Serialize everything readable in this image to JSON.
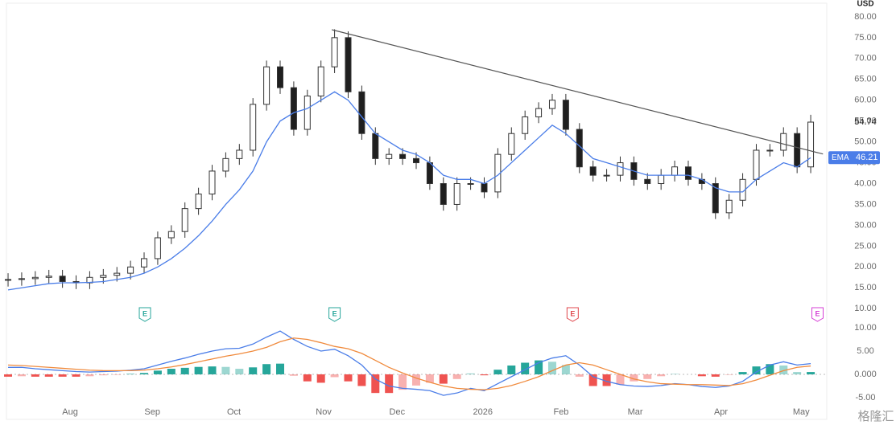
{
  "chart_data": [
    {
      "type": "candlestick",
      "currency": "USD",
      "xlim": [
        -0.12,
        60.18
      ],
      "ylim": [
        8.5,
        82.1
      ],
      "yticks": [
        {
          "value": 80,
          "label": "80.00"
        },
        {
          "value": 75,
          "label": "75.00"
        },
        {
          "value": 70,
          "label": "70.00"
        },
        {
          "value": 65,
          "label": "65.00"
        },
        {
          "value": 60,
          "label": "60.00"
        },
        {
          "value": 55,
          "label": "55.00"
        },
        {
          "value": 50,
          "label": "50.00"
        },
        {
          "value": 45,
          "label": "45.00"
        },
        {
          "value": 40,
          "label": "40.00"
        },
        {
          "value": 35,
          "label": "35.00"
        },
        {
          "value": 30,
          "label": "30.00"
        },
        {
          "value": 25,
          "label": "25.00"
        },
        {
          "value": 20,
          "label": "20.00"
        },
        {
          "value": 15,
          "label": "15.00"
        },
        {
          "value": 10,
          "label": "10.00"
        }
      ],
      "open": [
        16.8,
        17,
        17.2,
        17.5,
        17.8,
        16.5,
        16.2,
        17.5,
        18,
        18.5,
        20,
        22,
        27,
        28.5,
        34,
        37.5,
        43,
        46,
        48,
        59,
        68,
        63,
        53,
        61,
        68,
        75,
        62,
        52,
        46,
        47,
        46,
        45,
        40,
        35,
        40,
        40,
        38,
        47,
        52,
        56,
        58,
        60,
        53,
        44,
        42,
        42,
        45,
        41,
        40,
        42,
        44,
        41,
        40,
        33,
        36,
        41,
        48,
        48,
        52,
        44
      ],
      "high": [
        18.5,
        18.7,
        19,
        19.3,
        19.3,
        18,
        19,
        19.5,
        20,
        21.5,
        23.5,
        28.5,
        30,
        35.5,
        39,
        44.5,
        47.5,
        49.5,
        60.5,
        69.5,
        69.5,
        64.5,
        62.5,
        69.5,
        77,
        76.5,
        63.5,
        53.5,
        48.5,
        48.5,
        47.5,
        46.5,
        41.5,
        41.5,
        41.5,
        41.5,
        48.5,
        53.5,
        57.5,
        59.5,
        61.5,
        61.5,
        54.5,
        45.5,
        43.5,
        46.5,
        46.5,
        42.5,
        43.5,
        45.5,
        45.5,
        42.5,
        41.5,
        37.5,
        42.5,
        49.5,
        49.5,
        53.5,
        53.5,
        56.5
      ],
      "low": [
        15.3,
        15.5,
        15.7,
        16,
        15,
        14.7,
        14.7,
        16,
        16.5,
        17,
        18.5,
        20.5,
        25.5,
        27,
        32.5,
        36,
        41.5,
        44.5,
        46.5,
        57.5,
        61.5,
        51.5,
        51.5,
        59.5,
        66.5,
        60.5,
        50.5,
        44.5,
        44.5,
        44.5,
        43.5,
        38.5,
        33.5,
        33.5,
        38.5,
        36.5,
        36.5,
        45.5,
        50.5,
        54.5,
        56.5,
        51.5,
        42.5,
        40.5,
        40.5,
        40.5,
        39.5,
        38.5,
        38.5,
        40.5,
        39.5,
        38.5,
        31.5,
        31.5,
        34.5,
        39.5,
        46.5,
        46.5,
        42.5,
        42.5
      ],
      "close": [
        17,
        17.2,
        17.5,
        17.8,
        16.5,
        16.2,
        17.5,
        18,
        18.5,
        20,
        22,
        27,
        28.5,
        34,
        37.5,
        43,
        46,
        48,
        59,
        68,
        63,
        53,
        61,
        68,
        75,
        62,
        52,
        46,
        47,
        46,
        45,
        40,
        35,
        40,
        40,
        38,
        47,
        52,
        56,
        58,
        60,
        53,
        44,
        42,
        42,
        45,
        41,
        40,
        42,
        44,
        41,
        40,
        33,
        36,
        41,
        48,
        48,
        52,
        44,
        54.74
      ],
      "up_color": "#ffffff",
      "down_color": "#1f1f1f",
      "outline_color": "#333333",
      "series": [
        {
          "name": "EMA",
          "color": "#4a7de8",
          "values": [
            14.5,
            15,
            15.5,
            16,
            16.2,
            16.2,
            16.3,
            16.5,
            17,
            17.5,
            18.5,
            20,
            22,
            24.5,
            27.5,
            31,
            35,
            38.5,
            43,
            50,
            55,
            57,
            58,
            60,
            62,
            60,
            56,
            52,
            50,
            48,
            47,
            45,
            42,
            41,
            41,
            40,
            42,
            45,
            48,
            51,
            54,
            52,
            49,
            46,
            45,
            44,
            43,
            42,
            42,
            42,
            42,
            41,
            39,
            38,
            38,
            41,
            43,
            45,
            44,
            46.21
          ]
        }
      ],
      "trendline": {
        "x": [
          23.8,
          59.9
        ],
        "y": [
          76.9,
          47.1
        ],
        "color": "#555555"
      },
      "events": [
        {
          "label": "E",
          "x": 10.06,
          "color": "#26a69a"
        },
        {
          "label": "E",
          "x": 24.0,
          "color": "#26a69a"
        },
        {
          "label": "E",
          "x": 41.5,
          "color": "#e0474c"
        },
        {
          "label": "E",
          "x": 59.5,
          "color": "#d63fd6"
        }
      ]
    },
    {
      "type": "macd",
      "xlim": [
        -0.12,
        60.18
      ],
      "ylim": [
        -9.66,
        11.38
      ],
      "yticks": [
        {
          "value": 10,
          "label": "10.00"
        },
        {
          "value": 5,
          "label": "5.00"
        },
        {
          "value": 0,
          "label": "0.000"
        },
        {
          "value": -5,
          "label": "-5.00"
        }
      ],
      "xticks": [
        {
          "value": 4.56,
          "label": "Aug"
        },
        {
          "value": 10.6,
          "label": "Sep"
        },
        {
          "value": 16.6,
          "label": "Oct"
        },
        {
          "value": 23.2,
          "label": "Nov"
        },
        {
          "value": 28.6,
          "label": "Dec"
        },
        {
          "value": 34.9,
          "label": "2026"
        },
        {
          "value": 40.65,
          "label": "Feb"
        },
        {
          "value": 46.1,
          "label": "Mar"
        },
        {
          "value": 52.4,
          "label": "Apr"
        },
        {
          "value": 58.3,
          "label": "May"
        }
      ],
      "series": [
        {
          "name": "MACD",
          "color": "#4a7de8",
          "values": [
            1.5,
            1.5,
            1.2,
            1,
            0.8,
            0.6,
            0.5,
            0.6,
            0.7,
            0.9,
            1.2,
            2,
            2.8,
            3.5,
            4.3,
            5,
            5.5,
            5.6,
            6.5,
            8,
            9.3,
            7.5,
            6,
            5,
            5.4,
            4,
            2,
            -1,
            -2.5,
            -3,
            -3.2,
            -3.5,
            -4.5,
            -4,
            -3,
            -3.5,
            -2,
            -0.5,
            1,
            2.5,
            3.5,
            4,
            2,
            -0.5,
            -1.5,
            -2.2,
            -2.5,
            -2.6,
            -2.4,
            -2,
            -2.2,
            -2.6,
            -2.8,
            -2.5,
            -1.5,
            0.5,
            2,
            2.7,
            2,
            2.3
          ]
        },
        {
          "name": "Signal",
          "color": "#f08a3c",
          "values": [
            2,
            1.9,
            1.7,
            1.5,
            1.3,
            1.1,
            0.9,
            0.8,
            0.8,
            0.8,
            0.9,
            1.2,
            1.6,
            2.1,
            2.7,
            3.3,
            3.9,
            4.4,
            5,
            5.8,
            7,
            7.8,
            7.5,
            6.8,
            6,
            5.5,
            4.5,
            3,
            1.5,
            0.3,
            -0.8,
            -1.7,
            -2.5,
            -3,
            -3.2,
            -3.3,
            -3,
            -2.4,
            -1.5,
            -0.5,
            0.8,
            2,
            2.5,
            2,
            1,
            0,
            -1,
            -1.6,
            -2,
            -2.1,
            -2.2,
            -2.2,
            -2.3,
            -2.4,
            -2,
            -1.2,
            -0.2,
            0.8,
            1.5,
            1.8
          ]
        }
      ],
      "histogram": {
        "pos_color": "#26a69a",
        "neg_color": "#ef5350",
        "values": [
          -0.5,
          -0.4,
          -0.5,
          -0.5,
          -0.5,
          -0.5,
          -0.4,
          -0.2,
          -0.1,
          0.1,
          0.3,
          0.8,
          1.2,
          1.4,
          1.6,
          1.7,
          1.6,
          1.2,
          1.5,
          2.2,
          2.3,
          -0.3,
          -1.5,
          -1.8,
          -0.6,
          -1.5,
          -2.5,
          -4,
          -4,
          -3.3,
          -2.4,
          -1.8,
          -2,
          -1,
          0.2,
          -0.2,
          1,
          1.9,
          2.5,
          3,
          2.7,
          2,
          -0.5,
          -2.5,
          -2.5,
          -2.2,
          -1.5,
          -1,
          -0.4,
          0.1,
          0,
          -0.4,
          -0.5,
          -0.1,
          0.5,
          1.7,
          2.2,
          1.9,
          0.5,
          0.5
        ]
      }
    }
  ],
  "watermark": "格隆汇"
}
